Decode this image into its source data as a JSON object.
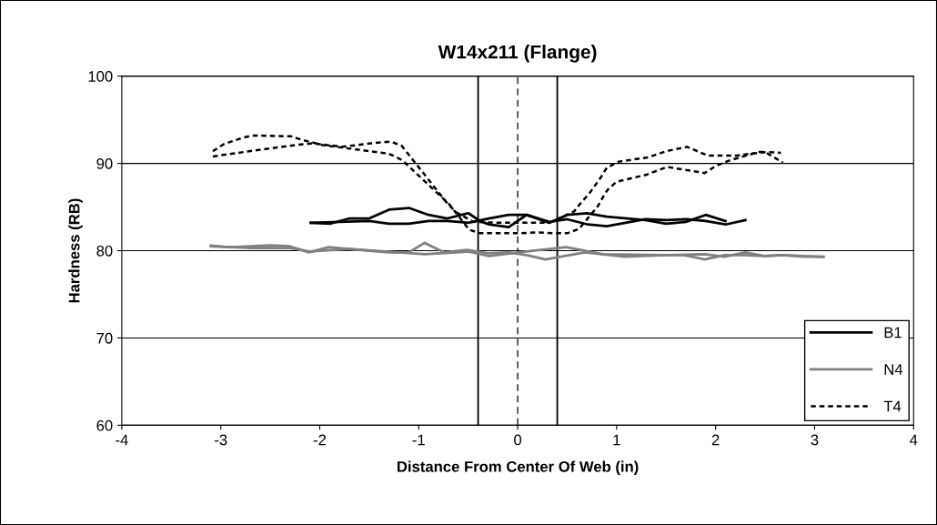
{
  "chart_data": {
    "type": "line",
    "title": "W14x211 (Flange)",
    "xlabel": "Distance From Center Of Web (in)",
    "ylabel": "Hardness (RB)",
    "xlim": [
      -4,
      4
    ],
    "xticks": [
      -4,
      -3,
      -2,
      -1,
      0,
      1,
      2,
      3,
      4
    ],
    "ylim": [
      60,
      100
    ],
    "yticks": [
      60,
      70,
      80,
      90,
      100
    ],
    "grid": "y",
    "legend": "bottom right",
    "marker": "none",
    "series": [
      {
        "name": "B1",
        "color": "#000000",
        "line_style": "solid",
        "x": [
          -2.09,
          -1.89,
          -1.7,
          -1.5,
          -1.3,
          -1.1,
          -0.9,
          -0.71,
          -0.5,
          -0.38,
          -0.29,
          -0.09,
          0.09,
          0.32,
          0.5,
          0.7,
          0.9,
          1.29,
          1.5,
          1.7,
          1.9,
          2.1
        ],
        "values": [
          83.2,
          83.1,
          83.7,
          83.7,
          84.7,
          84.9,
          84.1,
          83.7,
          84.3,
          83.4,
          83.0,
          82.7,
          84.1,
          83.2,
          84.1,
          84.3,
          83.9,
          83.5,
          83.1,
          83.3,
          84.1,
          83.4
        ]
      },
      {
        "color": "#000000",
        "line_style": "solid",
        "x": [
          -2.09,
          -1.5,
          -1.3,
          -1.1,
          -0.9,
          -0.71,
          -0.5,
          -0.29,
          -0.09,
          0.09,
          0.32,
          0.5,
          0.71,
          0.9,
          1.29,
          1.5,
          1.71,
          1.9,
          2.1,
          2.3
        ],
        "values": [
          83.2,
          83.4,
          83.1,
          83.1,
          83.4,
          83.4,
          83.2,
          83.7,
          84.1,
          84.1,
          83.3,
          83.6,
          83.0,
          82.8,
          83.6,
          83.5,
          83.6,
          83.4,
          83.0,
          83.5
        ]
      },
      {
        "name": "N4",
        "color": "#808080",
        "line_style": "solid",
        "x": [
          -3.1,
          -2.92,
          -2.5,
          -2.3,
          -2.11,
          -1.91,
          -1.5,
          -1.3,
          -1.1,
          -0.94,
          -0.74,
          -0.51,
          -0.3,
          -0.09,
          0.09,
          0.28,
          0.68,
          1.08,
          1.49,
          1.68,
          1.89,
          2.09,
          2.29,
          2.49,
          2.68,
          2.89,
          3.09
        ],
        "values": [
          80.6,
          80.4,
          80.6,
          80.5,
          79.8,
          80.4,
          80.0,
          79.8,
          79.8,
          80.9,
          79.8,
          80.1,
          79.7,
          79.8,
          79.5,
          79.0,
          79.8,
          79.3,
          79.5,
          79.5,
          79.0,
          79.5,
          79.5,
          79.4,
          79.5,
          79.3,
          79.3
        ]
      },
      {
        "color": "#808080",
        "line_style": "solid",
        "x": [
          -3.1,
          -2.7,
          -2.3,
          -2.1,
          -1.7,
          -0.94,
          -0.5,
          -0.29,
          0.09,
          0.49,
          0.86,
          1.49,
          1.89,
          2.09,
          2.3,
          2.49,
          2.68,
          3.09
        ],
        "values": [
          80.5,
          80.3,
          80.3,
          79.9,
          80.2,
          79.6,
          79.9,
          79.4,
          79.9,
          80.4,
          79.6,
          79.5,
          79.6,
          79.3,
          79.8,
          79.4,
          79.5,
          79.3
        ]
      },
      {
        "name": "T4",
        "color": "#000000",
        "line_style": "dotted",
        "x": [
          -3.08,
          -2.97,
          -2.79,
          -2.68,
          -2.29,
          -2.18,
          -1.97,
          -1.3,
          -1.17,
          -0.69,
          -0.49,
          -0.38,
          -0.2,
          0.0,
          0.2,
          0.35,
          0.5,
          0.62,
          0.81,
          0.87,
          0.91,
          1.0,
          1.3,
          1.51,
          1.89,
          2.0,
          2.13,
          2.43,
          2.5,
          2.68
        ],
        "values": [
          91.4,
          92.2,
          92.9,
          93.2,
          93.1,
          92.7,
          92.1,
          91.1,
          90.4,
          85.3,
          82.4,
          82.0,
          82.0,
          82.0,
          82.1,
          82.0,
          82.0,
          82.5,
          85.1,
          86.3,
          87.0,
          87.9,
          88.7,
          89.6,
          88.9,
          89.7,
          90.3,
          91.3,
          91.3,
          90.1
        ]
      },
      {
        "color": "#000000",
        "line_style": "dotted",
        "x": [
          -3.08,
          -2.77,
          -2.25,
          -2.07,
          -1.77,
          -1.48,
          -1.28,
          -1.17,
          -0.71,
          -0.62,
          -0.45,
          -0.18,
          0.32,
          0.57,
          0.64,
          0.72,
          0.84,
          0.9,
          1.02,
          1.32,
          1.5,
          1.71,
          1.92,
          2.22,
          2.34,
          2.52,
          2.66
        ],
        "values": [
          90.8,
          91.3,
          92.1,
          92.3,
          91.9,
          92.3,
          92.5,
          92.0,
          85.4,
          84.4,
          83.3,
          83.2,
          83.2,
          84.5,
          85.5,
          86.5,
          88.4,
          89.5,
          90.2,
          90.7,
          91.4,
          91.9,
          90.9,
          90.9,
          91.1,
          91.3,
          91.2
        ]
      }
    ],
    "ref_lines": [
      {
        "axis": "x",
        "value": -0.4,
        "color": "#000000",
        "line_style": "solid"
      },
      {
        "axis": "x",
        "value": 0,
        "color": "#000000",
        "line_style": "dashed"
      },
      {
        "axis": "x",
        "value": 0.4,
        "color": "#000000",
        "line_style": "solid"
      }
    ]
  }
}
